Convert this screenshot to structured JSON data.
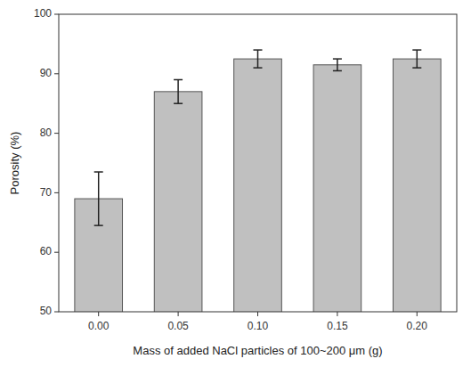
{
  "chart_data": {
    "type": "bar",
    "categories": [
      "0.00",
      "0.05",
      "0.10",
      "0.15",
      "0.20"
    ],
    "values": [
      69.0,
      87.0,
      92.5,
      91.5,
      92.5
    ],
    "errors": [
      4.5,
      2.0,
      1.5,
      1.0,
      1.5
    ],
    "color": "#c0c0c0",
    "xlabel": "Mass of added NaCl particles of 100~200 μm (g)",
    "ylabel": "Porosity (%)",
    "ylim": [
      50,
      100
    ],
    "yticks": [
      50,
      60,
      70,
      80,
      90,
      100
    ],
    "grid": false
  }
}
